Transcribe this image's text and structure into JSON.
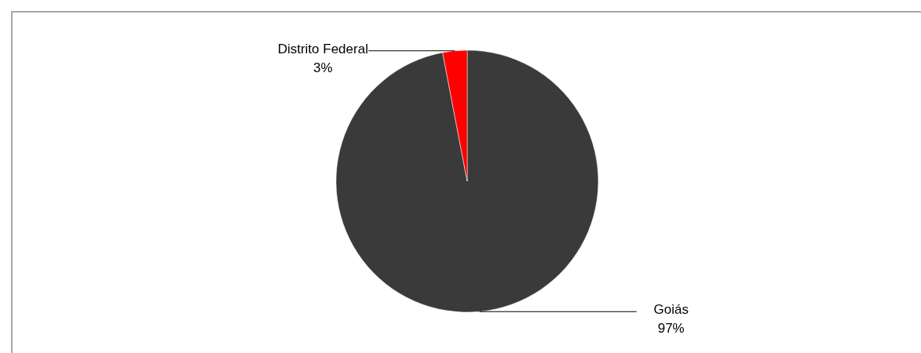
{
  "chart_data": {
    "type": "pie",
    "categories": [
      "Goiás",
      "Distrito Federal"
    ],
    "values": [
      97,
      3
    ],
    "value_labels": [
      "97%",
      "3%"
    ],
    "colors": [
      "#3a3a3a",
      "#ff0000"
    ]
  }
}
